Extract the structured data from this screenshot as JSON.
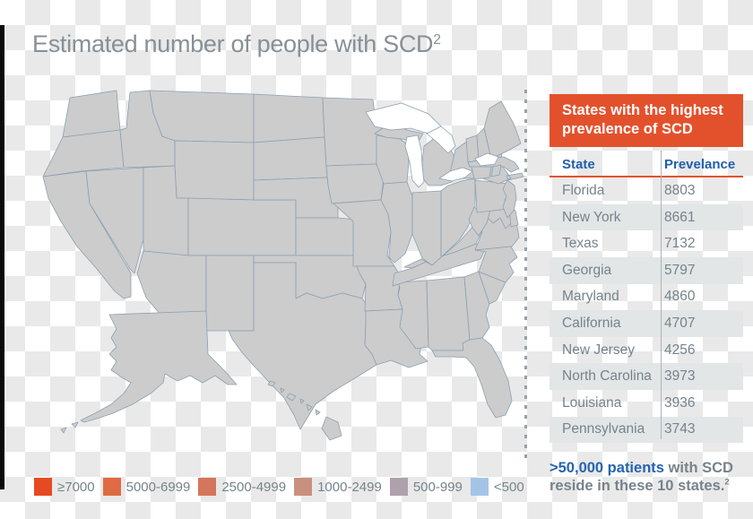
{
  "title": {
    "text": "Estimated number of people with SCD",
    "sup": "2"
  },
  "panel": {
    "header": "States with the highest prevalence of SCD",
    "columns": {
      "state": "State",
      "prevalence": "Prevelance"
    },
    "rows": [
      {
        "state": "Florida",
        "value": "8803"
      },
      {
        "state": "New York",
        "value": "8661"
      },
      {
        "state": "Texas",
        "value": "7132"
      },
      {
        "state": "Georgia",
        "value": "5797"
      },
      {
        "state": "Maryland",
        "value": "4860"
      },
      {
        "state": "California",
        "value": "4707"
      },
      {
        "state": "New Jersey",
        "value": "4256"
      },
      {
        "state": "North Carolina",
        "value": "3973"
      },
      {
        "state": "Louisiana",
        "value": "3936"
      },
      {
        "state": "Pennsylvania",
        "value": "3743"
      }
    ]
  },
  "footnote": {
    "highlight": ">50,000 patients",
    "rest": "with SCD reside in these 10 states.",
    "sup": "2"
  },
  "legend": [
    {
      "label": "≥7000",
      "category": "gte7000"
    },
    {
      "label": "5000-6999",
      "category": "c5000_6999"
    },
    {
      "label": "2500-4999",
      "category": "c2500_4999"
    },
    {
      "label": "1000-2499",
      "category": "c1000_2499"
    },
    {
      "label": "500-999",
      "category": "c500_999"
    },
    {
      "label": "<500",
      "category": "lt500"
    }
  ],
  "colors": {
    "title_color": "#879097",
    "panel_header_bg": "#E3512C",
    "panel_header_text": "#FFFFFF",
    "table_header_text": "#1F5FAE",
    "accent_line": "#E3512C",
    "column_divider": "#ABB4B8",
    "row_text": "#76838B",
    "alt_row_bg": "#E2E6E7",
    "footnote_blue": "#2564AE",
    "footnote_gray": "#76838B",
    "state_border": "#8CA0B1",
    "lake": "#FFFFFF",
    "dash_divider": "#97A1A7"
  },
  "chart_data": {
    "type": "heatmap",
    "title": "Estimated number of people with SCD²",
    "legend_position": "bottom",
    "categories": {
      "gte7000": "#E54A22",
      "c5000_6999": "#DE6B44",
      "c2500_4999": "#D3765B",
      "c1000_2499": "#C9907E",
      "c500_999": "#AEA1AC",
      "lt500": "#A4C4E6"
    },
    "buckets": [
      "≥7000",
      "5000-6999",
      "2500-4999",
      "1000-2499",
      "500-999",
      "<500"
    ],
    "top_states": [
      {
        "state": "Florida",
        "value": 8803
      },
      {
        "state": "New York",
        "value": 8661
      },
      {
        "state": "Texas",
        "value": 7132
      },
      {
        "state": "Georgia",
        "value": 5797
      },
      {
        "state": "Maryland",
        "value": 4860
      },
      {
        "state": "California",
        "value": 4707
      },
      {
        "state": "New Jersey",
        "value": 4256
      },
      {
        "state": "North Carolina",
        "value": 3973
      },
      {
        "state": "Louisiana",
        "value": 3936
      },
      {
        "state": "Pennsylvania",
        "value": 3743
      }
    ]
  },
  "map": {
    "categories": {
      "gte7000": "#E54A22",
      "c5000_6999": "#DE6B44",
      "c2500_4999": "#D3765B",
      "c1000_2499": "#C9907E",
      "c500_999": "#AEA1AC",
      "lt500": "#A4C4E6"
    },
    "states": {
      "wa": "lt500",
      "or": "lt500",
      "id": "lt500",
      "mt": "lt500",
      "wy": "lt500",
      "nv": "lt500",
      "ut": "lt500",
      "co": "lt500",
      "nm": "lt500",
      "nd": "lt500",
      "sd": "lt500",
      "ne": "lt500",
      "ks": "lt500",
      "mn": "lt500",
      "ia": "lt500",
      "wv": "lt500",
      "de": "lt500",
      "vt": "lt500",
      "nh": "lt500",
      "me": "lt500",
      "ak": "lt500",
      "hi": "lt500",
      "az": "c500_999",
      "ok": "c500_999",
      "wi": "c500_999",
      "in": "c500_999",
      "ky": "c500_999",
      "mo": "c1000_2499",
      "ar": "c1000_2499",
      "tn": "c1000_2499",
      "ca": "c2500_4999",
      "mi": "c2500_4999",
      "il": "c2500_4999",
      "oh": "c2500_4999",
      "pa": "c2500_4999",
      "nj": "c2500_4999",
      "md": "c2500_4999",
      "va": "c2500_4999",
      "nc": "c2500_4999",
      "sc": "c2500_4999",
      "al": "c2500_4999",
      "ms": "c2500_4999",
      "la": "c2500_4999",
      "ct": "c2500_4999",
      "ri": "c2500_4999",
      "ma": "c2500_4999",
      "ga": "c5000_6999",
      "tx": "gte7000",
      "fl": "gte7000",
      "ny": "gte7000"
    }
  }
}
